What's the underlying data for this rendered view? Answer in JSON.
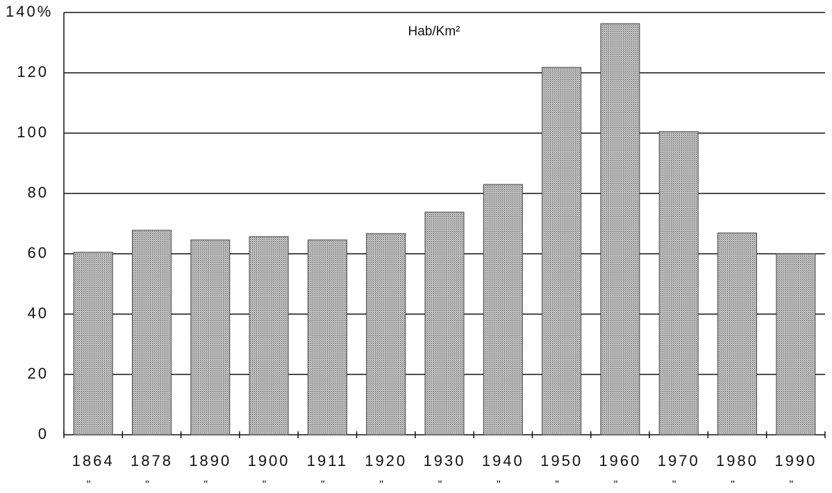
{
  "chart_data": {
    "type": "bar",
    "subtitle": "Hab/Km²",
    "categories": [
      "1864",
      "1878",
      "1890",
      "1900",
      "1911",
      "1920",
      "1930",
      "1940",
      "1950",
      "1960",
      "1970",
      "1980",
      "1990"
    ],
    "x_sublabels": [
      "\"",
      "\"",
      "\"",
      "\"",
      "\"",
      "\"",
      "\"",
      "\"",
      "\"",
      "\"",
      "\"",
      "\"",
      "\""
    ],
    "values": [
      60.5,
      67.8,
      64.6,
      65.7,
      64.6,
      66.7,
      73.8,
      83,
      121.8,
      136.3,
      100.5,
      66.9,
      60
    ],
    "color": "#c4c4c4",
    "ylim": [
      0,
      140
    ],
    "yticks": [
      0,
      20,
      40,
      60,
      80,
      100,
      120,
      {
        "value": 140,
        "label": "140%"
      }
    ],
    "grid": true
  }
}
